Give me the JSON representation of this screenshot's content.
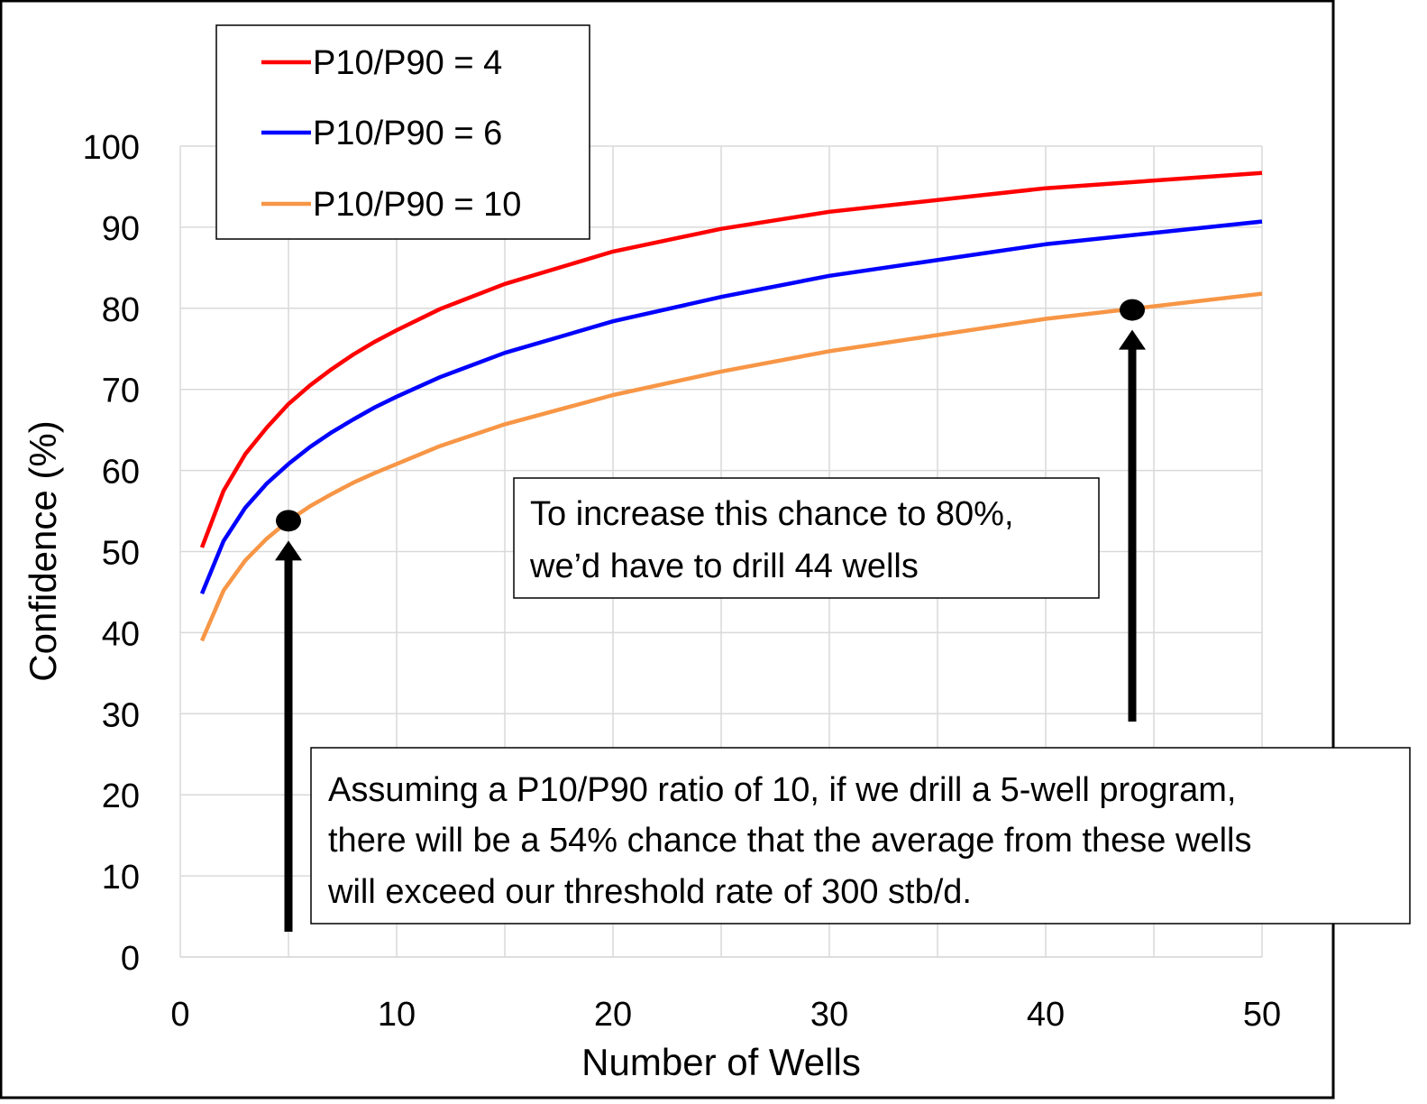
{
  "chart_data": {
    "type": "line",
    "title": "",
    "xlabel": "Number of Wells",
    "ylabel": "Confidence (%)",
    "xlim": [
      0,
      50
    ],
    "ylim": [
      0,
      100
    ],
    "x_ticks": [
      "0",
      "10",
      "20",
      "30",
      "40",
      "50"
    ],
    "y_ticks": [
      "0",
      "10",
      "20",
      "30",
      "40",
      "50",
      "60",
      "70",
      "80",
      "90",
      "100"
    ],
    "x_tick_values": [
      0,
      10,
      20,
      30,
      40,
      50
    ],
    "y_tick_values": [
      0,
      10,
      20,
      30,
      40,
      50,
      60,
      70,
      80,
      90,
      100
    ],
    "x_minor_grid": [
      5,
      15,
      25,
      35,
      45
    ],
    "grid": true,
    "legend_position": "top-left",
    "series": [
      {
        "name": "P10/P90 = 4",
        "color": "#ff0000",
        "x": [
          1,
          2,
          3,
          4,
          5,
          6,
          7,
          8,
          9,
          10,
          12,
          15,
          20,
          25,
          30,
          40,
          50
        ],
        "y": [
          50.5,
          57.5,
          62,
          65.3,
          68.2,
          70.5,
          72.5,
          74.3,
          75.9,
          77.3,
          79.9,
          83,
          87,
          89.8,
          91.9,
          94.8,
          96.7
        ]
      },
      {
        "name": "P10/P90 = 6",
        "color": "#0000ff",
        "x": [
          1,
          2,
          3,
          4,
          5,
          6,
          7,
          8,
          9,
          10,
          12,
          15,
          20,
          25,
          30,
          40,
          50
        ],
        "y": [
          44.8,
          51.3,
          55.4,
          58.4,
          60.8,
          62.9,
          64.7,
          66.3,
          67.8,
          69.1,
          71.5,
          74.5,
          78.4,
          81.4,
          84,
          87.9,
          90.7
        ]
      },
      {
        "name": "P10/P90 = 10",
        "color": "#f79646",
        "x": [
          1,
          2,
          3,
          4,
          5,
          6,
          7,
          8,
          9,
          10,
          12,
          15,
          20,
          25,
          30,
          40,
          50
        ],
        "y": [
          39,
          45.2,
          48.9,
          51.6,
          53.8,
          55.6,
          57.1,
          58.5,
          59.7,
          60.8,
          63,
          65.7,
          69.3,
          72.2,
          74.7,
          78.7,
          81.8
        ]
      }
    ],
    "highlight_points": [
      {
        "x": 5,
        "y": 53.8
      },
      {
        "x": 44,
        "y": 79.8
      }
    ],
    "annotations": [
      {
        "lines": [
          "To increase this chance to 80%,",
          "we’d have to drill 44 wells"
        ]
      },
      {
        "lines": [
          "Assuming a P10/P90 ratio of 10, if we drill a 5-well program,",
          "there will be a 54% chance that the average from these wells",
          "will exceed our threshold rate of 300 stb/d."
        ]
      }
    ]
  }
}
